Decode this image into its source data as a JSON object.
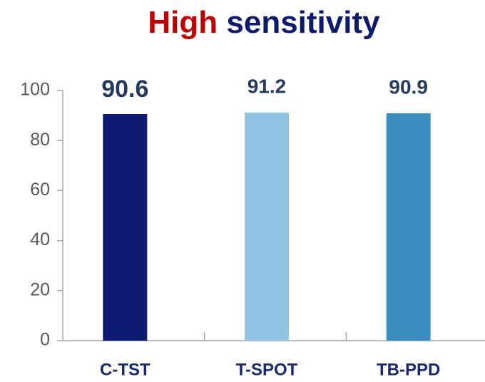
{
  "chart_data": {
    "type": "bar",
    "title": [
      {
        "text": "High",
        "color": "#c00000"
      },
      {
        "text": "sensitivity",
        "color": "#0d1a6e"
      }
    ],
    "categories": [
      "C-TST",
      "T-SPOT",
      "TB-PPD"
    ],
    "values": [
      90.6,
      91.2,
      90.9
    ],
    "colors": [
      "#0c1a70",
      "#93c4e2",
      "#3a8fc0"
    ],
    "ylim": [
      0,
      100
    ],
    "yticks": [
      0,
      20,
      40,
      60,
      80,
      100
    ],
    "grid": false
  }
}
